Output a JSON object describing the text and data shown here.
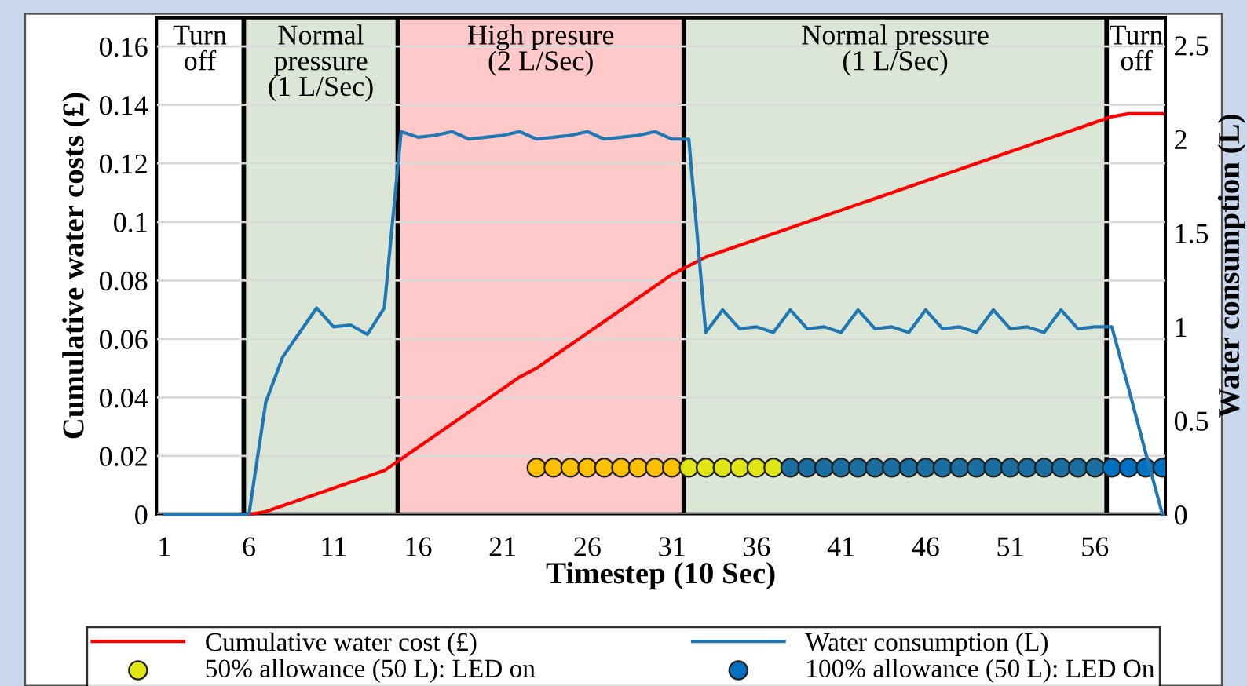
{
  "chart_data": {
    "type": "line",
    "xlabel": "Timestep (10 Sec)",
    "ylabel": "Cumulative water costs (£)",
    "y2label": "Water consumption (L)",
    "x": [
      1,
      2,
      3,
      4,
      5,
      6,
      7,
      8,
      9,
      10,
      11,
      12,
      13,
      14,
      15,
      16,
      17,
      18,
      19,
      20,
      21,
      22,
      23,
      24,
      25,
      26,
      27,
      28,
      29,
      30,
      31,
      32,
      33,
      34,
      35,
      36,
      37,
      38,
      39,
      40,
      41,
      42,
      43,
      44,
      45,
      46,
      47,
      48,
      49,
      50,
      51,
      52,
      53,
      54,
      55,
      56,
      57,
      58,
      59,
      60
    ],
    "xlim": [
      0.5,
      60.2
    ],
    "xticks": [
      1,
      6,
      11,
      16,
      21,
      26,
      31,
      36,
      41,
      46,
      51,
      56
    ],
    "ylim": [
      0,
      0.17
    ],
    "yticks": [
      0,
      0.02,
      0.04,
      0.06,
      0.08,
      0.1,
      0.12,
      0.14,
      0.16
    ],
    "y2lim": [
      0,
      2.65
    ],
    "y2ticks": [
      0,
      0.5,
      1,
      1.5,
      2,
      2.5
    ],
    "grid": "y",
    "legend": "bottom",
    "bands": [
      {
        "axis": "x",
        "from": 0.5,
        "to": 5.7,
        "label": "Turn\noff",
        "color": "#ffffff"
      },
      {
        "axis": "x",
        "from": 5.7,
        "to": 14.8,
        "label": "Normal\npressure\n(1 L/Sec)",
        "color": "#dce6d6"
      },
      {
        "axis": "x",
        "from": 14.8,
        "to": 31.7,
        "label": "High presure\n(2 L/Sec)",
        "color": "#ffc9c9"
      },
      {
        "axis": "x",
        "from": 31.7,
        "to": 56.7,
        "label": "Normal pressure\n(1 L/Sec)",
        "color": "#dce6d6"
      },
      {
        "axis": "x",
        "from": 56.7,
        "to": 60.2,
        "label": "Turn\noff",
        "color": "#ffffff"
      }
    ],
    "series": [
      {
        "name": "Cumulative water cost (£)",
        "color": "#ff0000",
        "axis": "y",
        "values": [
          null,
          null,
          null,
          null,
          null,
          0,
          0.001,
          0.003,
          0.005,
          0.007,
          0.009,
          0.011,
          0.013,
          0.015,
          0.019,
          0.023,
          0.027,
          0.031,
          0.035,
          0.039,
          0.043,
          0.047,
          0.05,
          0.054,
          0.058,
          0.062,
          0.066,
          0.07,
          0.074,
          0.078,
          0.082,
          0.085,
          0.088,
          0.09,
          0.092,
          0.094,
          0.096,
          0.098,
          0.1,
          0.102,
          0.104,
          0.106,
          0.108,
          0.11,
          0.112,
          0.114,
          0.116,
          0.118,
          0.12,
          0.122,
          0.124,
          0.126,
          0.128,
          0.13,
          0.132,
          0.134,
          0.136,
          0.137,
          0.137,
          0.137
        ]
      },
      {
        "name": "Water consumption (L)",
        "color": "#1f77b4",
        "axis": "y2",
        "values": [
          0,
          0,
          0,
          0,
          0,
          0,
          0.6,
          0.84,
          0.97,
          1.1,
          1.0,
          1.01,
          0.96,
          1.1,
          2.04,
          2.01,
          2.02,
          2.04,
          2.0,
          2.01,
          2.02,
          2.04,
          2.0,
          2.01,
          2.02,
          2.04,
          2.0,
          2.01,
          2.02,
          2.04,
          2.0,
          2.0,
          0.97,
          1.09,
          0.99,
          1.0,
          0.97,
          1.09,
          0.99,
          1.0,
          0.97,
          1.09,
          0.99,
          1.0,
          0.97,
          1.09,
          0.99,
          1.0,
          0.97,
          1.09,
          0.99,
          1.0,
          0.97,
          1.09,
          0.99,
          1.0,
          1.0,
          0.67,
          0.33,
          0
        ]
      },
      {
        "name": "50% allowance (50 L): LED on",
        "type": "scatter",
        "marker": "circle",
        "color": "#e0e614",
        "axis": "y",
        "x": [
          23,
          24,
          25,
          26,
          27,
          28,
          29,
          30,
          31,
          32,
          33,
          34,
          35,
          36,
          37
        ],
        "values": [
          0.016,
          0.016,
          0.016,
          0.016,
          0.016,
          0.016,
          0.016,
          0.016,
          0.016,
          0.016,
          0.016,
          0.016,
          0.016,
          0.016,
          0.016
        ],
        "colors": [
          "#ffc000",
          "#ffc000",
          "#ffc000",
          "#ffc000",
          "#ffc000",
          "#ffc000",
          "#ffc000",
          "#ffc000",
          "#ffc000",
          "#e0e614",
          "#e0e614",
          "#e0e614",
          "#e0e614",
          "#e0e614",
          "#e0e614"
        ]
      },
      {
        "name": "100% allowance (50 L): LED On",
        "type": "scatter",
        "marker": "circle",
        "color": "#0070c0",
        "axis": "y",
        "x": [
          38,
          39,
          40,
          41,
          42,
          43,
          44,
          45,
          46,
          47,
          48,
          49,
          50,
          51,
          52,
          53,
          54,
          55,
          56,
          57,
          58,
          59,
          60
        ],
        "values": [
          0.016,
          0.016,
          0.016,
          0.016,
          0.016,
          0.016,
          0.016,
          0.016,
          0.016,
          0.016,
          0.016,
          0.016,
          0.016,
          0.016,
          0.016,
          0.016,
          0.016,
          0.016,
          0.016,
          0.016,
          0.016,
          0.016,
          0.016
        ],
        "colors": [
          "#1a6ea0",
          "#1a6ea0",
          "#1a6ea0",
          "#1a6ea0",
          "#1a6ea0",
          "#1a6ea0",
          "#1a6ea0",
          "#1a6ea0",
          "#1a6ea0",
          "#1a6ea0",
          "#1a6ea0",
          "#1a6ea0",
          "#1a6ea0",
          "#1a6ea0",
          "#1a6ea0",
          "#1a6ea0",
          "#1a6ea0",
          "#1a6ea0",
          "#1a6ea0",
          "#0070c0",
          "#0070c0",
          "#0070c0",
          "#0070c0"
        ]
      }
    ]
  }
}
